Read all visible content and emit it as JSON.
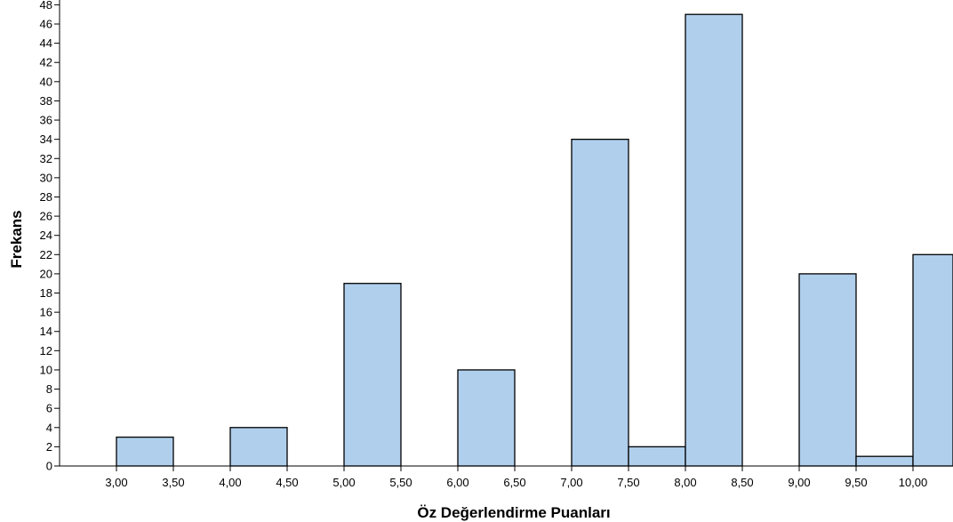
{
  "chart_data": {
    "type": "bar",
    "xlabel": "Öz Değerlendirme Puanları",
    "ylabel": "Frekans",
    "ylim": [
      0,
      48
    ],
    "xlim": [
      2.5,
      10.35
    ],
    "y_ticks": [
      0,
      2,
      4,
      6,
      8,
      10,
      12,
      14,
      16,
      18,
      20,
      22,
      24,
      26,
      28,
      30,
      32,
      34,
      36,
      38,
      40,
      42,
      44,
      46,
      48
    ],
    "x_ticks": [
      {
        "value": 3.0,
        "label": "3,00"
      },
      {
        "value": 3.5,
        "label": "3,50"
      },
      {
        "value": 4.0,
        "label": "4,00"
      },
      {
        "value": 4.5,
        "label": "4,50"
      },
      {
        "value": 5.0,
        "label": "5,00"
      },
      {
        "value": 5.5,
        "label": "5,50"
      },
      {
        "value": 6.0,
        "label": "6,00"
      },
      {
        "value": 6.5,
        "label": "6,50"
      },
      {
        "value": 7.0,
        "label": "7,00"
      },
      {
        "value": 7.5,
        "label": "7,50"
      },
      {
        "value": 8.0,
        "label": "8,00"
      },
      {
        "value": 8.5,
        "label": "8,50"
      },
      {
        "value": 9.0,
        "label": "9,00"
      },
      {
        "value": 9.5,
        "label": "9,50"
      },
      {
        "value": 10.0,
        "label": "10,00"
      }
    ],
    "bins": [
      {
        "start": 3.0,
        "end": 3.5,
        "value": 3
      },
      {
        "start": 4.0,
        "end": 4.5,
        "value": 4
      },
      {
        "start": 5.0,
        "end": 5.5,
        "value": 19
      },
      {
        "start": 6.0,
        "end": 6.5,
        "value": 10
      },
      {
        "start": 7.0,
        "end": 7.5,
        "value": 34
      },
      {
        "start": 7.5,
        "end": 8.0,
        "value": 2
      },
      {
        "start": 8.0,
        "end": 8.5,
        "value": 47
      },
      {
        "start": 9.0,
        "end": 9.5,
        "value": 20
      },
      {
        "start": 9.5,
        "end": 10.0,
        "value": 1
      },
      {
        "start": 10.0,
        "end": 10.5,
        "value": 22
      }
    ],
    "bar_color": "#afcfed",
    "edge_color": "#000000",
    "grid": false
  }
}
